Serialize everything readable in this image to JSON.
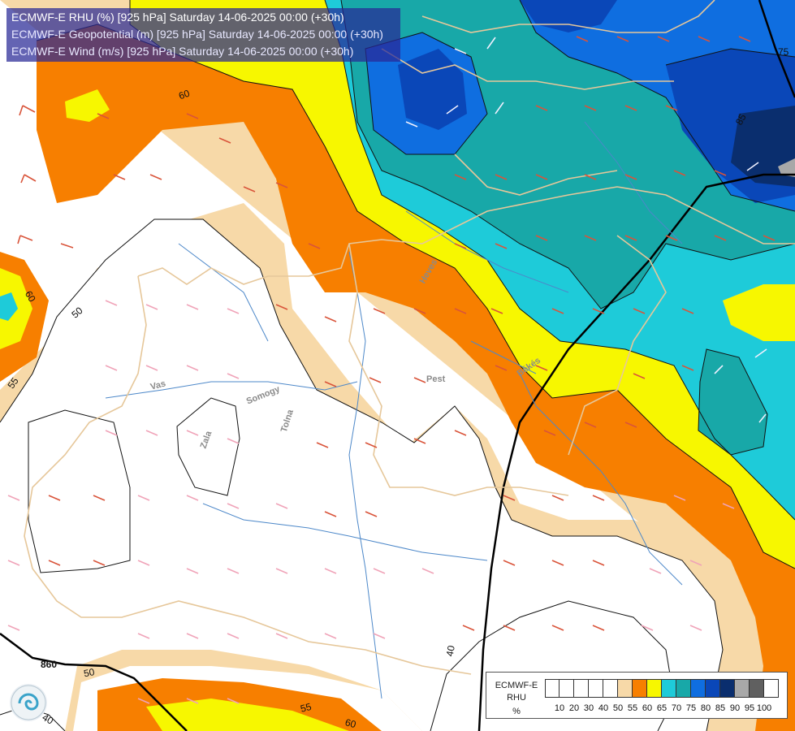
{
  "title_lines": [
    "ECMWF-E RHU (%) [925 hPa] Saturday 14-06-2025 00:00 (+30h)",
    "ECMWF-E Geopotential (m) [925 hPa] Saturday 14-06-2025 00:00 (+30h)",
    "ECMWF-E Wind (m/s) [925 hPa] Saturday 14-06-2025 00:00 (+30h)"
  ],
  "legend": {
    "line1": "ECMWF-E",
    "line2": "RHU",
    "line3": "%",
    "ticks": [
      "10",
      "20",
      "30",
      "40",
      "50",
      "55",
      "60",
      "65",
      "70",
      "75",
      "80",
      "85",
      "90",
      "95",
      "100"
    ],
    "colors": [
      "#ffffff",
      "#ffffff",
      "#ffffff",
      "#ffffff",
      "#ffffff",
      "#f7d9a8",
      "#f77f00",
      "#f7f700",
      "#1ecbd9",
      "#18a8a8",
      "#0f6ee0",
      "#0a47b8",
      "#0a2e6e",
      "#a8a8a8",
      "#606060",
      "#ffffff"
    ]
  },
  "colors": {
    "rh_50_55": "#f7d9a8",
    "rh_55_60": "#f77f00",
    "rh_60_65": "#f7f700",
    "rh_65_70": "#1ecbd9",
    "rh_70_75": "#18a8a8",
    "rh_75_80": "#0f6ee0",
    "rh_80_85": "#0a47b8",
    "rh_85_90": "#0a2e6e",
    "rh_90_95": "#a8a8a8"
  },
  "contour_labels": [
    "60",
    "50",
    "60",
    "55",
    "40",
    "50",
    "55",
    "60",
    "75",
    "85",
    "40"
  ],
  "geopotential_labels": [
    "860"
  ],
  "river_labels": [
    "Vas",
    "Zala",
    "Somogy",
    "Tolna",
    "Pest",
    "Heves",
    "Békés"
  ]
}
